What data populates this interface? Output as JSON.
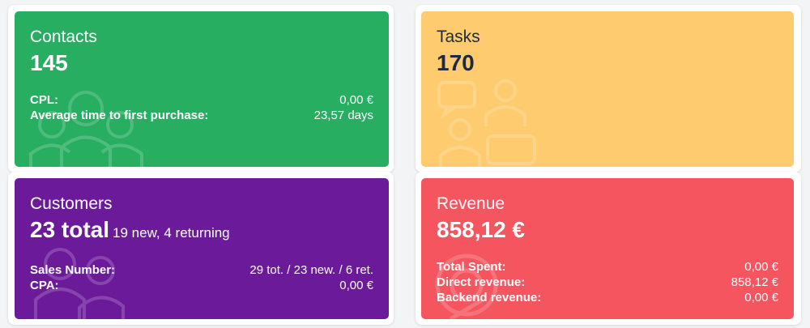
{
  "contacts": {
    "title": "Contacts",
    "value": "145",
    "rows": [
      {
        "label": "CPL:",
        "value": "0,00 €"
      },
      {
        "label": "Average time to first purchase:",
        "value": "23,57 days"
      }
    ],
    "icon": "people-group-icon",
    "color": "#27ae60"
  },
  "tasks": {
    "title": "Tasks",
    "value": "170",
    "icon": "people-chat-icon",
    "color": "#fecb6e"
  },
  "customers": {
    "title": "Customers",
    "value": "23 total",
    "value_sub": "19 new, 4 returning",
    "rows": [
      {
        "label": "Sales Number:",
        "value": "29 tot. / 23 new. / 6 ret."
      },
      {
        "label": "CPA:",
        "value": "0,00 €"
      }
    ],
    "icon": "two-users-icon",
    "color": "#6b1b9a"
  },
  "revenue": {
    "title": "Revenue",
    "value": "858,12 €",
    "rows": [
      {
        "label": "Total Spent:",
        "value": "0,00 €"
      },
      {
        "label": "Direct revenue:",
        "value": "858,12 €"
      },
      {
        "label": "Backend revenue:",
        "value": "0,00 €"
      }
    ],
    "icon": "hand-coin-icon",
    "color": "#f5555f"
  }
}
